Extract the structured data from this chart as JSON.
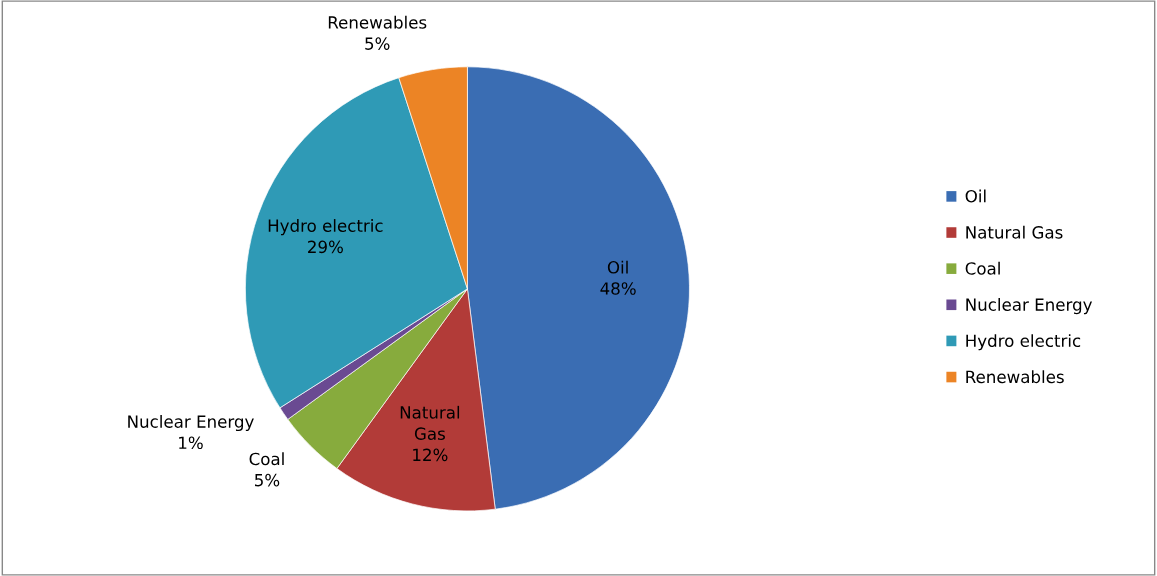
{
  "chart_data": {
    "type": "pie",
    "categories": [
      "Oil",
      "Natural Gas",
      "Coal",
      "Nuclear Energy",
      "Hydro electric",
      "Renewables"
    ],
    "values": [
      48,
      12,
      5,
      1,
      29,
      5
    ],
    "value_labels": [
      "48%",
      "12%",
      "5%",
      "1%",
      "29%",
      "5%"
    ],
    "colors": [
      "#3a6db3",
      "#b23b38",
      "#87ab3d",
      "#6a4a92",
      "#2f9ab6",
      "#ec8425"
    ],
    "legend": "right"
  }
}
